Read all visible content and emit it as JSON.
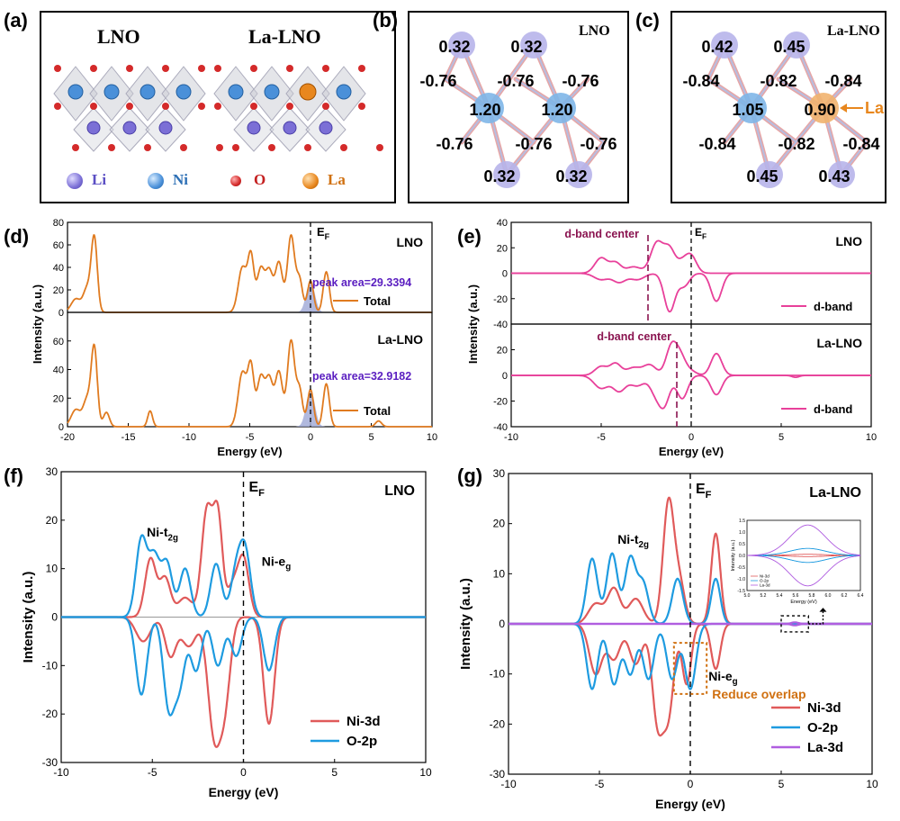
{
  "panels": {
    "a": {
      "label": "(a)",
      "title_left": "LNO",
      "title_right": "La-LNO",
      "legend": [
        {
          "name": "Li",
          "color": "#7b6fd6"
        },
        {
          "name": "Ni",
          "color": "#4a90d9"
        },
        {
          "name": "O",
          "color": "#d42a2a"
        },
        {
          "name": "La",
          "color": "#e8871e"
        }
      ]
    },
    "b": {
      "label": "(b)",
      "title": "LNO",
      "li_charges": [
        "0.32",
        "0.32",
        "0.32",
        "0.32"
      ],
      "ni_charges": [
        "1.20",
        "1.20"
      ],
      "o_charges_top": [
        "-0.76",
        "-0.76",
        "-0.76"
      ],
      "o_charges_bottom": [
        "-0.76",
        "-0.76",
        "-0.76"
      ]
    },
    "c": {
      "label": "(c)",
      "title": "La-LNO",
      "li_charges_top": [
        "0.42",
        "0.45"
      ],
      "li_charges_bottom": [
        "0.45",
        "0.43"
      ],
      "ni_charge": "1.05",
      "la_charge": "0.90",
      "la_pointer": "La",
      "o_charges_top": [
        "-0.84",
        "-0.82",
        "-0.84"
      ],
      "o_charges_bottom": [
        "-0.84",
        "-0.82",
        "-0.84"
      ]
    },
    "d": {
      "label": "(d)"
    },
    "e": {
      "label": "(e)"
    },
    "f": {
      "label": "(f)"
    },
    "g": {
      "label": "(g)"
    }
  },
  "chart_data": [
    {
      "id": "d-top",
      "type": "line",
      "ylabel": "Intensity (a.u.)",
      "xlim": [
        -20,
        10
      ],
      "ylim": [
        0,
        80
      ],
      "yticks": [
        "0",
        "20",
        "40",
        "60",
        "80"
      ],
      "tag": "LNO",
      "fermi_label": "E",
      "fermi_sub": "F",
      "annotation": "peak area=29.3394",
      "peak_area": 29.3394,
      "series": [
        {
          "name": "Total",
          "color": "#e07b20",
          "peaks": [
            [
              -19.3,
              12,
              0.4
            ],
            [
              -18.4,
              20,
              0.3
            ],
            [
              -17.8,
              66,
              0.25
            ],
            [
              -5.6,
              40,
              0.35
            ],
            [
              -4.9,
              48,
              0.25
            ],
            [
              -4.1,
              38,
              0.3
            ],
            [
              -3.4,
              36,
              0.3
            ],
            [
              -2.6,
              44,
              0.3
            ],
            [
              -1.6,
              68,
              0.3
            ],
            [
              -0.9,
              28,
              0.25
            ],
            [
              0,
              28,
              0.25
            ],
            [
              1.3,
              36,
              0.25
            ]
          ]
        }
      ],
      "shaded": {
        "center": 0,
        "height": 28,
        "width": 0.3,
        "color": "#9ea7d6"
      }
    },
    {
      "id": "d-bottom",
      "type": "line",
      "xlabel": "Energy (eV)",
      "xlim": [
        -20,
        10
      ],
      "ylim": [
        0,
        80
      ],
      "xticks": [
        "-20",
        "-15",
        "-10",
        "-5",
        "0",
        "5",
        "10"
      ],
      "yticks": [
        "0",
        "20",
        "40",
        "60"
      ],
      "tag": "La-LNO",
      "annotation": "peak area=32.9182",
      "peak_area": 32.9182,
      "series": [
        {
          "name": "Total",
          "color": "#e07b20",
          "peaks": [
            [
              -19.3,
              12,
              0.4
            ],
            [
              -18.4,
              18,
              0.3
            ],
            [
              -17.8,
              55,
              0.25
            ],
            [
              -16.8,
              10,
              0.25
            ],
            [
              -13.2,
              11,
              0.2
            ],
            [
              -5.6,
              38,
              0.35
            ],
            [
              -4.9,
              40,
              0.25
            ],
            [
              -4.1,
              34,
              0.3
            ],
            [
              -3.4,
              33,
              0.3
            ],
            [
              -2.6,
              38,
              0.3
            ],
            [
              -1.6,
              60,
              0.3
            ],
            [
              -0.9,
              25,
              0.25
            ],
            [
              0,
              26,
              0.25
            ],
            [
              1.3,
              30,
              0.25
            ],
            [
              5.6,
              4,
              0.25
            ]
          ]
        }
      ],
      "shaded": {
        "center": 0,
        "height": 26,
        "width": 0.3,
        "color": "#9ea7d6"
      }
    },
    {
      "id": "e-top",
      "type": "line",
      "ylabel": "Intensity (a.u.)",
      "xlim": [
        -10,
        10
      ],
      "ylim": [
        -40,
        40
      ],
      "yticks": [
        "-40",
        "-20",
        "0",
        "20",
        "40"
      ],
      "tag": "LNO",
      "fermi_label": "E",
      "fermi_sub": "F",
      "band_center_label": "d-band center",
      "band_center": -2.4,
      "series": [
        {
          "name": "d-band",
          "color": "#e8409a",
          "up": [
            [
              -5.0,
              12,
              0.35
            ],
            [
              -4.2,
              8,
              0.3
            ],
            [
              -3.2,
              5,
              0.4
            ],
            [
              -1.9,
              24,
              0.35
            ],
            [
              -1.2,
              18,
              0.3
            ],
            [
              -0.5,
              8,
              0.3
            ],
            [
              0,
              13,
              0.3
            ]
          ],
          "down": [
            [
              -5.0,
              5,
              0.4
            ],
            [
              -4.0,
              7,
              0.35
            ],
            [
              -3.0,
              5,
              0.4
            ],
            [
              -1.2,
              30,
              0.3
            ],
            [
              -0.4,
              10,
              0.3
            ],
            [
              1.4,
              22,
              0.3
            ]
          ]
        }
      ]
    },
    {
      "id": "e-bottom",
      "type": "line",
      "xlabel": "Energy (eV)",
      "xlim": [
        -10,
        10
      ],
      "ylim": [
        -40,
        40
      ],
      "xticks": [
        "-10",
        "-5",
        "0",
        "5",
        "10"
      ],
      "yticks": [
        "-40",
        "-20",
        "0",
        "20"
      ],
      "tag": "La-LNO",
      "band_center_label": "d-band center",
      "band_center": -0.8,
      "series": [
        {
          "name": "d-band",
          "color": "#e8409a",
          "up": [
            [
              -5.0,
              7,
              0.35
            ],
            [
              -4.2,
              9,
              0.3
            ],
            [
              -3.2,
              6,
              0.4
            ],
            [
              -2.3,
              8,
              0.35
            ],
            [
              -1.1,
              22,
              0.3
            ],
            [
              -0.6,
              14,
              0.3
            ],
            [
              0,
              3,
              0.3
            ],
            [
              1.4,
              17,
              0.3
            ]
          ],
          "down": [
            [
              -5.0,
              10,
              0.4
            ],
            [
              -4.0,
              12,
              0.35
            ],
            [
              -3.0,
              8,
              0.4
            ],
            [
              -2.0,
              12,
              0.3
            ],
            [
              -1.5,
              22,
              0.3
            ],
            [
              -0.5,
              18,
              0.3
            ],
            [
              1.4,
              15,
              0.3
            ],
            [
              5.8,
              1.5,
              0.2
            ]
          ]
        }
      ]
    },
    {
      "id": "f",
      "type": "line",
      "xlabel": "Energy (eV)",
      "ylabel": "Intensity (a.u.)",
      "xlim": [
        -10,
        10
      ],
      "ylim": [
        -30,
        30
      ],
      "xticks": [
        "-10",
        "-5",
        "0",
        "5",
        "10"
      ],
      "yticks": [
        "-30",
        "-20",
        "-10",
        "0",
        "10",
        "20",
        "30"
      ],
      "tag": "LNO",
      "fermi_label": "E",
      "fermi_sub": "F",
      "labels": {
        "t2g": "Ni-t",
        "t2g_sub": "2g",
        "eg": "Ni-e",
        "eg_sub": "g"
      },
      "series": [
        {
          "name": "Ni-3d",
          "color": "#e05a5a",
          "up": [
            [
              -5.1,
              12,
              0.3
            ],
            [
              -4.3,
              8,
              0.3
            ],
            [
              -3.2,
              4,
              0.4
            ],
            [
              -2.0,
              22,
              0.3
            ],
            [
              -1.4,
              20,
              0.25
            ],
            [
              -0.6,
              6,
              0.3
            ],
            [
              0,
              12,
              0.3
            ]
          ],
          "down": [
            [
              -5.5,
              5,
              0.4
            ],
            [
              -4.0,
              8,
              0.3
            ],
            [
              -3.0,
              6,
              0.4
            ],
            [
              -1.6,
              24,
              0.35
            ],
            [
              -1.0,
              15,
              0.3
            ],
            [
              1.4,
              22,
              0.3
            ]
          ]
        },
        {
          "name": "O-2p",
          "color": "#1e9be0",
          "up": [
            [
              -5.6,
              16,
              0.3
            ],
            [
              -4.9,
              12,
              0.3
            ],
            [
              -4.2,
              11,
              0.3
            ],
            [
              -3.2,
              10,
              0.3
            ],
            [
              -1.5,
              11,
              0.3
            ],
            [
              -0.4,
              9,
              0.3
            ],
            [
              0.1,
              13,
              0.3
            ]
          ],
          "down": [
            [
              -5.6,
              16,
              0.3
            ],
            [
              -4.1,
              18,
              0.3
            ],
            [
              -3.5,
              13,
              0.3
            ],
            [
              -2.6,
              11,
              0.3
            ],
            [
              -1.4,
              10,
              0.3
            ],
            [
              -0.4,
              8,
              0.3
            ],
            [
              1.4,
              11,
              0.3
            ]
          ]
        }
      ]
    },
    {
      "id": "g",
      "type": "line",
      "xlabel": "Energy (eV)",
      "ylabel": "Intensity (a.u.)",
      "xlim": [
        -10,
        10
      ],
      "ylim": [
        -30,
        30
      ],
      "xticks": [
        "-10",
        "-5",
        "0",
        "5",
        "10"
      ],
      "yticks": [
        "-30",
        "-20",
        "-10",
        "0",
        "10",
        "20",
        "30"
      ],
      "tag": "La-LNO",
      "fermi_label": "E",
      "fermi_sub": "F",
      "labels": {
        "t2g": "Ni-t",
        "t2g_sub": "2g",
        "eg": "Ni-e",
        "eg_sub": "g",
        "overlap": "Reduce overlap"
      },
      "series": [
        {
          "name": "Ni-3d",
          "color": "#e05a5a",
          "up": [
            [
              -5.2,
              4,
              0.4
            ],
            [
              -4.2,
              7,
              0.35
            ],
            [
              -3.0,
              5,
              0.4
            ],
            [
              -1.2,
              24,
              0.3
            ],
            [
              -0.6,
              8,
              0.3
            ],
            [
              1.4,
              18,
              0.25
            ]
          ],
          "down": [
            [
              -5.2,
              10,
              0.35
            ],
            [
              -4.2,
              7,
              0.35
            ],
            [
              -3.0,
              8,
              0.35
            ],
            [
              -1.8,
              19,
              0.3
            ],
            [
              -1.2,
              17,
              0.3
            ],
            [
              -0.2,
              12,
              0.25
            ],
            [
              1.4,
              9,
              0.25
            ]
          ]
        },
        {
          "name": "O-2p",
          "color": "#1e9be0",
          "up": [
            [
              -5.4,
              13,
              0.3
            ],
            [
              -4.3,
              14,
              0.3
            ],
            [
              -3.3,
              13,
              0.3
            ],
            [
              -2.6,
              8,
              0.3
            ],
            [
              -0.7,
              9,
              0.3
            ],
            [
              1.4,
              9,
              0.25
            ]
          ],
          "down": [
            [
              -5.4,
              13,
              0.3
            ],
            [
              -4.2,
              12,
              0.3
            ],
            [
              -3.3,
              10,
              0.3
            ],
            [
              -2.3,
              11,
              0.3
            ],
            [
              -1.0,
              11,
              0.3
            ],
            [
              0,
              13,
              0.3
            ]
          ]
        },
        {
          "name": "La-3d",
          "color": "#b05ee0",
          "up": [
            [
              5.75,
              0.3,
              0.2
            ]
          ],
          "down": [
            [
              5.75,
              0.3,
              0.2
            ]
          ]
        }
      ],
      "inset": {
        "xlabel": "Energy (eV)",
        "ylabel": "Intensity (a.u.)",
        "xlim": [
          5.0,
          6.4
        ],
        "ylim": [
          -1.5,
          1.5
        ],
        "xticks": [
          "5.0",
          "5.2",
          "5.4",
          "5.6",
          "5.8",
          "6.0",
          "6.2",
          "6.4"
        ],
        "yticks": [
          "-1.5",
          "-1.0",
          "-0.5",
          "0.0",
          "0.5",
          "1.0",
          "1.5"
        ],
        "legend": [
          "Ni-3d",
          "O-2p",
          "La-3d"
        ],
        "amplitudes": {
          "Ni-3d": 0.05,
          "O-2p": 0.3,
          "La-3d": 1.3
        }
      }
    }
  ]
}
